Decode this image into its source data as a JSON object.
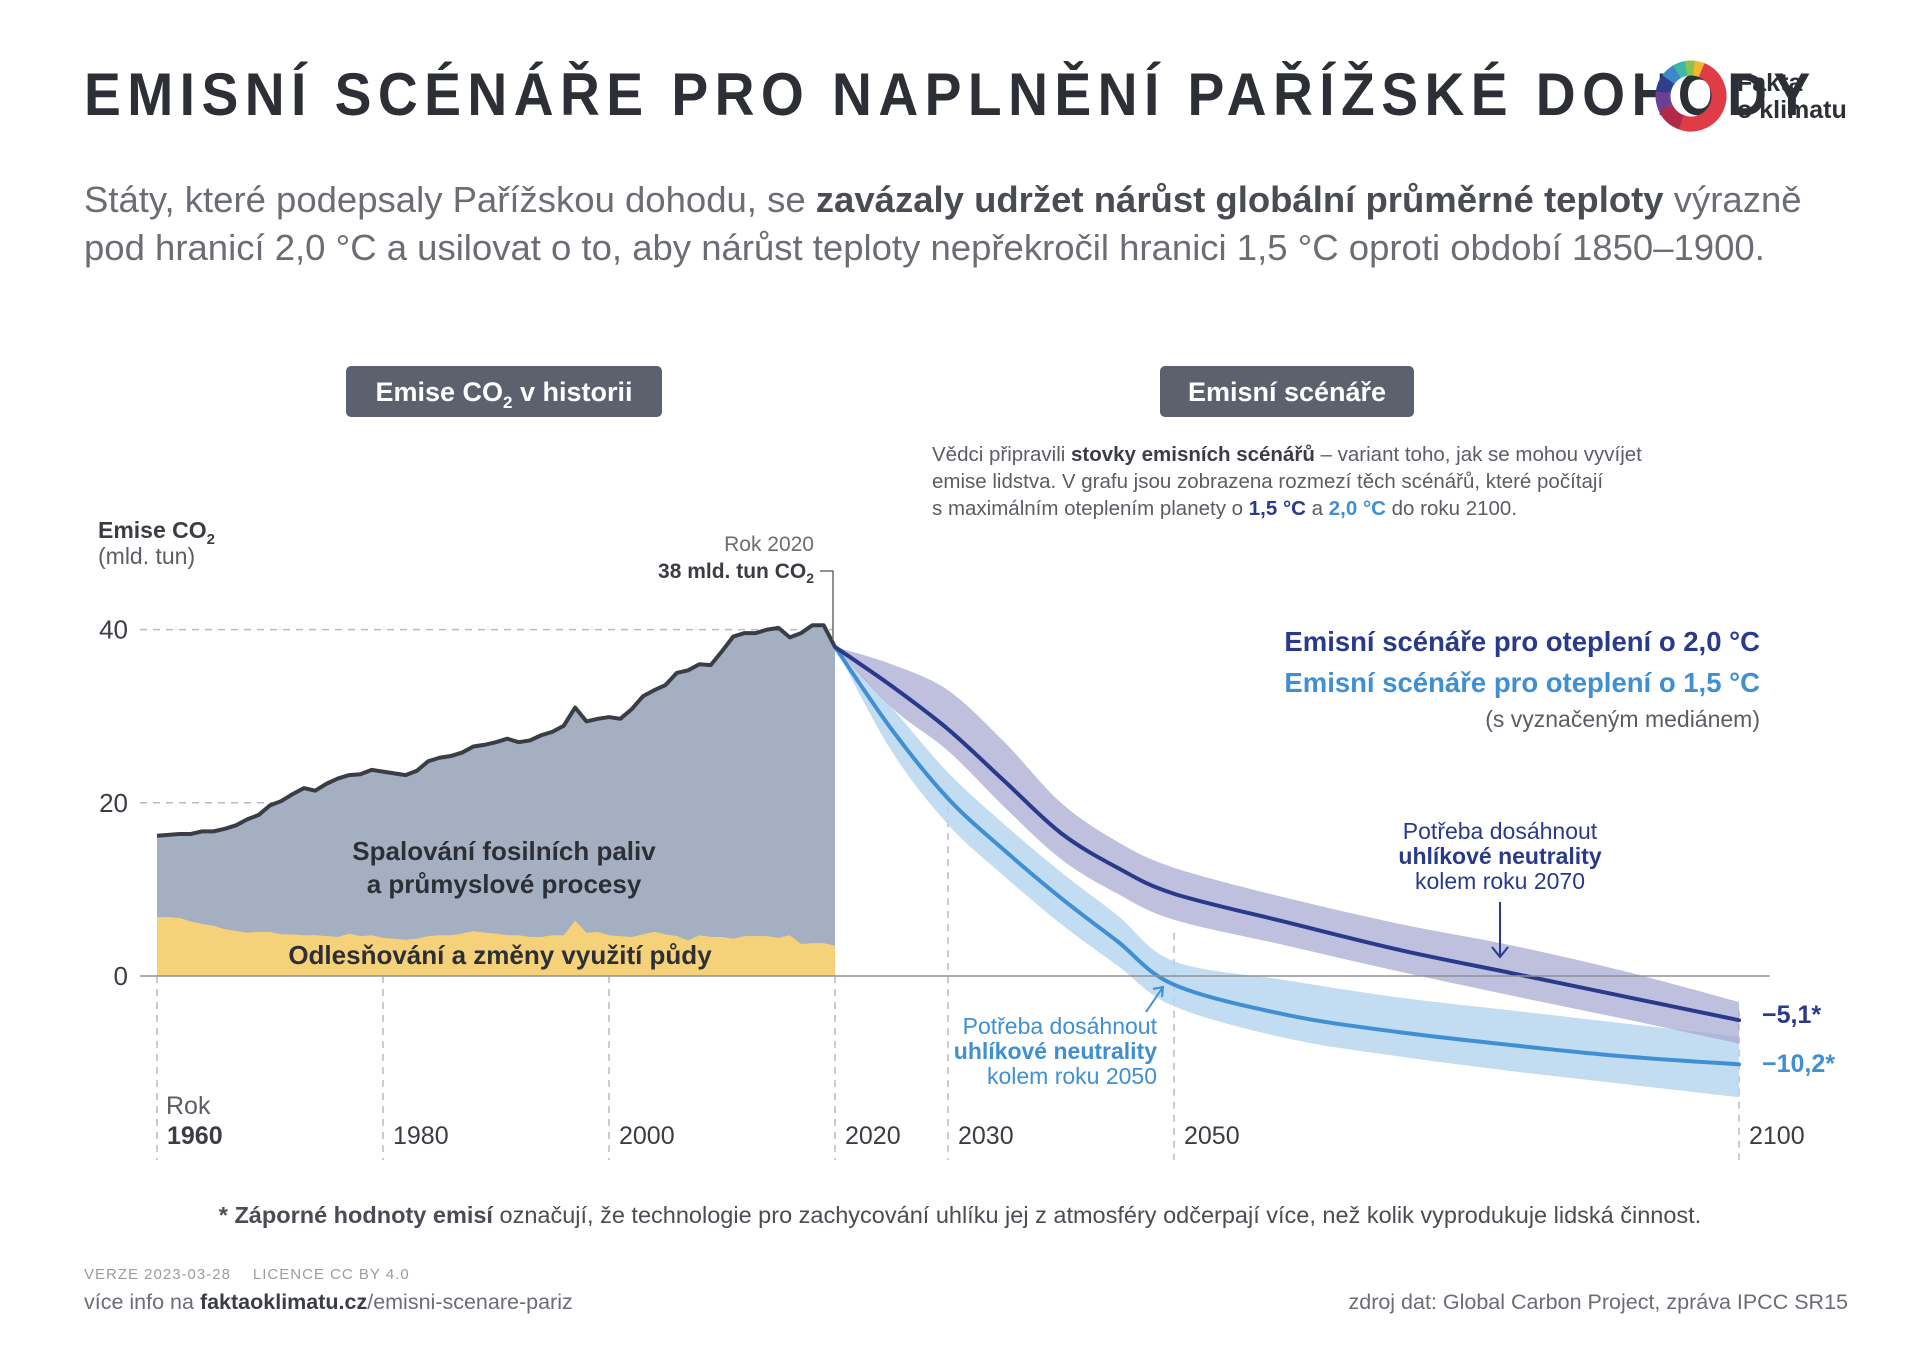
{
  "header": {
    "title": "EMISNÍ SCÉNÁŘE PRO NAPLNĚNÍ PAŘÍŽSKÉ DOHODY",
    "logo_line1": "Fakta",
    "logo_line2": "o klimatu",
    "subtitle_part1": "Státy, které podepsaly Pařížskou dohodu, se ",
    "subtitle_bold": "zavázaly udržet nárůst globální průměrné teploty",
    "subtitle_part2": " výrazně pod hranicí 2,0 °C a usilovat o to, aby nárůst teploty nepřekročil hranici 1,5 °C oproti období 1850–1900."
  },
  "colors": {
    "fossil_area": "#a4b0c2",
    "land_area": "#f5d27a",
    "history_line": "#3b3d45",
    "band_2_0": "#a9aad3",
    "line_2_0": "#2a3a8a",
    "band_1_5": "#b7d6ef",
    "line_1_5": "#3f8fd2",
    "label_box": "#5b616d"
  },
  "labels": {
    "history_box_prefix": "Emise CO",
    "history_box_sub": "2",
    "history_box_suffix": " v historii",
    "scenario_box": "Emisní scénáře",
    "desc_part1": "Vědci připravili ",
    "desc_bold": "stovky emisních scénářů",
    "desc_part2": " – variant toho, jak se mohou vyvíjet",
    "desc_line2": "emise lidstva. V grafu jsou zobrazena rozmezí těch scénářů, které počítají",
    "desc_line3a": "s maximálním oteplením planety o ",
    "desc_15": "1,5 °C",
    "desc_and": " a ",
    "desc_20": "2,0 °C",
    "desc_line3b": " do roku 2100.",
    "rok2020": "Rok 2020",
    "value2020": "38 mld. tun CO",
    "value2020_sub": "2",
    "fossil_line1": "Spalování fosilních paliv",
    "fossil_line2": "a průmyslové procesy",
    "land_label": "Odlesňování a změny využití půdy",
    "legend_20": "Emisní scénáře pro oteplení o 2,0 °C",
    "legend_15": "Emisní scénáře pro oteplení o 1,5 °C",
    "legend_median": "(s vyznačeným mediánem)",
    "neutral2070_l1": "Potřeba dosáhnout",
    "neutral2070_l2": "uhlíkové neutrality",
    "neutral2070_l3": "kolem roku 2070",
    "neutral2050_l1": "Potřeba dosáhnout",
    "neutral2050_l2": "uhlíkové neutrality",
    "neutral2050_l3": "kolem roku 2050",
    "end_20": "−5,1*",
    "end_15": "−10,2*",
    "rok": "Rok"
  },
  "chart_data": {
    "type": "area",
    "title": "Emise CO2",
    "ylabel_main": "Emise CO",
    "ylabel_sub": "2",
    "ylabel_unit": "(mld. tun)",
    "xlabel": "Rok",
    "xlim": [
      1960,
      2100
    ],
    "ylim": [
      -14,
      40
    ],
    "yticks": [
      0,
      20,
      40
    ],
    "xticks": [
      {
        "year": 1960,
        "label": "1960",
        "bold": true
      },
      {
        "year": 1980,
        "label": "1980",
        "bold": false
      },
      {
        "year": 2000,
        "label": "2000",
        "bold": false
      },
      {
        "year": 2020,
        "label": "2020",
        "bold": false
      },
      {
        "year": 2030,
        "label": "2030",
        "bold": false
      },
      {
        "year": 2050,
        "label": "2050",
        "bold": false
      },
      {
        "year": 2100,
        "label": "2100",
        "bold": false
      }
    ],
    "history_years": [
      1960,
      1961,
      1962,
      1963,
      1964,
      1965,
      1966,
      1967,
      1968,
      1969,
      1970,
      1971,
      1972,
      1973,
      1974,
      1975,
      1976,
      1977,
      1978,
      1979,
      1980,
      1981,
      1982,
      1983,
      1984,
      1985,
      1986,
      1987,
      1988,
      1989,
      1990,
      1991,
      1992,
      1993,
      1994,
      1995,
      1996,
      1997,
      1998,
      1999,
      2000,
      2001,
      2002,
      2003,
      2004,
      2005,
      2006,
      2007,
      2008,
      2009,
      2010,
      2011,
      2012,
      2013,
      2014,
      2015,
      2016,
      2017,
      2018,
      2019,
      2020
    ],
    "series": [
      {
        "name": "Celkové emise CO2",
        "values": [
          16.2,
          16.3,
          16.4,
          16.4,
          16.7,
          16.7,
          17.0,
          17.4,
          18.1,
          18.6,
          19.7,
          20.2,
          21.0,
          21.7,
          21.4,
          22.2,
          22.8,
          23.2,
          23.3,
          23.8,
          23.6,
          23.4,
          23.2,
          23.7,
          24.8,
          25.2,
          25.4,
          25.8,
          26.5,
          26.7,
          27.0,
          27.4,
          27.0,
          27.2,
          27.8,
          28.2,
          28.9,
          31.0,
          29.4,
          29.7,
          29.9,
          29.7,
          30.8,
          32.3,
          33.0,
          33.6,
          35.0,
          35.3,
          36.0,
          35.9,
          37.5,
          39.2,
          39.6,
          39.6,
          40.0,
          40.2,
          39.1,
          39.6,
          40.5,
          40.5,
          38.0
        ]
      },
      {
        "name": "Odlesňování a změny využití půdy",
        "values": [
          6.8,
          6.8,
          6.7,
          6.3,
          6.0,
          5.8,
          5.4,
          5.2,
          5.0,
          5.1,
          5.1,
          4.8,
          4.8,
          4.7,
          4.7,
          4.6,
          4.5,
          4.9,
          4.6,
          4.7,
          4.4,
          4.3,
          4.2,
          4.3,
          4.6,
          4.7,
          4.7,
          4.9,
          5.2,
          5.0,
          4.9,
          4.7,
          4.7,
          4.5,
          4.5,
          4.7,
          4.7,
          6.4,
          5.0,
          5.1,
          4.7,
          4.6,
          4.5,
          4.8,
          5.1,
          4.8,
          4.6,
          4.1,
          4.7,
          4.5,
          4.5,
          4.3,
          4.6,
          4.6,
          4.6,
          4.4,
          4.7,
          3.7,
          3.8,
          3.8,
          3.5
        ]
      },
      {
        "name": "Emisní scénáře pro oteplení o 2,0 °C (medián)",
        "x": [
          2020,
          2025,
          2030,
          2035,
          2040,
          2045,
          2050,
          2060,
          2070,
          2080,
          2090,
          2100
        ],
        "values": [
          38,
          33.5,
          28.5,
          22.5,
          16.5,
          12.5,
          9.5,
          6.2,
          3.0,
          0.3,
          -2.4,
          -5.1
        ],
        "band_low": [
          38,
          31,
          26,
          19.5,
          13.5,
          9.5,
          6.5,
          3.5,
          0.5,
          -2.3,
          -5.0,
          -7.8
        ],
        "band_high": [
          38,
          36,
          33,
          27,
          20,
          15.5,
          12.5,
          9.0,
          6.0,
          3.5,
          0.5,
          -3.0
        ]
      },
      {
        "name": "Emisní scénáře pro oteplení o 1,5 °C (medián)",
        "x": [
          2020,
          2025,
          2030,
          2035,
          2040,
          2045,
          2050,
          2060,
          2070,
          2080,
          2090,
          2100
        ],
        "values": [
          38,
          28.5,
          20.5,
          14.5,
          9.0,
          4.0,
          -1.0,
          -4.5,
          -6.5,
          -8.0,
          -9.3,
          -10.2
        ],
        "band_low": [
          38,
          26,
          17.5,
          11.5,
          6.0,
          1.2,
          -3.5,
          -7.2,
          -9.3,
          -11.0,
          -12.5,
          -14.0
        ],
        "band_high": [
          38,
          31,
          23.5,
          17.5,
          12,
          7.0,
          1.7,
          -0.5,
          -2.5,
          -4.0,
          -5.5,
          -7.0
        ]
      }
    ],
    "end_values": {
      "scenario_2_0": -5.1,
      "scenario_1_5": -10.2
    },
    "value_2020": 38
  },
  "footer": {
    "footnote_bold": "* Záporné hodnoty emisí",
    "footnote_rest": " označují, že technologie pro zachycování uhlíku jej z atmosféry odčerpají více, než kolik vyprodukuje lidská činnost.",
    "version": "VERZE 2023-03-28",
    "license": "LICENCE CC BY 4.0",
    "moreinfo_prefix": "více info na ",
    "moreinfo_bold": "faktaoklimatu.cz",
    "moreinfo_path": "/emisni-scenare-pariz",
    "source": "zdroj dat: Global Carbon Project, zpráva IPCC SR15"
  }
}
